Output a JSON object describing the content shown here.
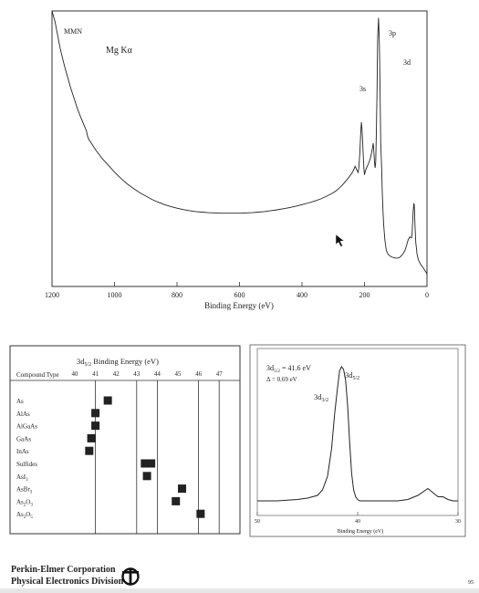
{
  "chart_data": [
    {
      "type": "line",
      "title": "Mg Kα",
      "xlabel": "Binding Energy (eV)",
      "ylabel": "",
      "xlim": [
        1200,
        0
      ],
      "x_ticks": [
        "1200",
        "1000",
        "800",
        "600",
        "400",
        "200",
        "0"
      ],
      "annotations": [
        "MMN",
        "3s",
        "3p",
        "3d"
      ],
      "series": [
        {
          "x": [
            1200,
            1195,
            1190,
            1185,
            1180,
            1175,
            1170,
            1160,
            1150,
            1140,
            1130,
            1120,
            1110,
            1100,
            1090,
            1085,
            1080,
            1060,
            1040,
            1020,
            1000,
            980,
            960,
            940,
            920,
            900,
            880,
            860,
            840,
            820,
            800,
            780,
            760,
            740,
            720,
            700,
            680,
            660,
            640,
            620,
            600,
            580,
            560,
            540,
            520,
            500,
            480,
            460,
            440,
            420,
            400,
            380,
            360,
            340,
            320,
            300,
            290,
            280,
            270,
            260,
            250,
            245,
            240,
            235,
            230,
            225,
            220,
            218,
            215,
            212,
            210,
            208,
            205,
            202,
            200,
            198,
            195,
            190,
            185,
            180,
            175,
            172,
            170,
            168,
            166,
            164,
            162,
            160,
            158,
            155,
            152,
            150,
            148,
            145,
            143,
            141,
            139,
            137,
            135,
            132,
            130,
            125,
            120,
            115,
            110,
            105,
            100,
            95,
            90,
            85,
            80,
            75,
            70,
            65,
            60,
            55,
            50,
            48,
            46,
            44,
            42,
            41,
            40,
            38,
            36,
            34,
            32,
            30,
            28,
            25,
            22,
            20,
            18,
            15,
            12,
            10,
            8,
            5,
            2,
            0
          ],
          "y": [
            1000,
            980,
            960,
            930,
            900,
            870,
            845,
            800,
            760,
            720,
            685,
            650,
            620,
            592,
            565,
            540,
            530,
            495,
            465,
            440,
            415,
            393,
            373,
            356,
            341,
            328,
            316,
            306,
            297,
            290,
            284,
            279,
            275,
            272,
            270,
            268,
            267,
            266,
            266,
            266,
            266,
            267,
            268,
            270,
            272,
            275,
            278,
            282,
            286,
            291,
            297,
            303,
            310,
            318,
            328,
            340,
            348,
            358,
            369,
            382,
            396,
            404,
            412,
            422,
            436,
            424,
            414,
            432,
            486,
            560,
            596,
            570,
            500,
            430,
            405,
            416,
            426,
            439,
            452,
            470,
            500,
            520,
            488,
            450,
            430,
            450,
            560,
            700,
            900,
            975,
            870,
            700,
            520,
            430,
            340,
            280,
            230,
            200,
            170,
            145,
            130,
            118,
            112,
            108,
            106,
            104,
            103,
            103,
            104,
            108,
            114,
            122,
            132,
            150,
            170,
            180,
            176,
            185,
            230,
            275,
            300,
            298,
            275,
            210,
            160,
            140,
            120,
            108,
            98,
            90,
            84,
            80,
            76,
            72,
            68,
            64,
            60,
            55,
            50,
            45
          ]
        }
      ]
    },
    {
      "type": "scatter",
      "title": "3d5/2 Binding Energy (eV)",
      "title_main": "3d",
      "title_sub": "5/2",
      "title_rest": " Binding Energy (eV)",
      "xlabel": "Compound Type",
      "xlim": [
        40,
        47
      ],
      "x_ticks": [
        "40",
        "41",
        "42",
        "43",
        "44",
        "45",
        "46",
        "47"
      ],
      "categories": [
        {
          "main": "As"
        },
        {
          "main": "AlAs"
        },
        {
          "main": "AlGaAs"
        },
        {
          "main": "GaAs"
        },
        {
          "main": "InAs"
        },
        {
          "main": "Sulfides"
        },
        {
          "main": "AsI",
          "sub": "3"
        },
        {
          "main": "AsBr",
          "sub": "3"
        },
        {
          "main": "As",
          "sub": "2",
          "rest": "O",
          "sub2": "3"
        },
        {
          "main": "As",
          "sub": "2",
          "rest": "O",
          "sub2": "5"
        }
      ],
      "values": [
        [
          41.6
        ],
        [
          41.0
        ],
        [
          41.0
        ],
        [
          40.8
        ],
        [
          40.7
        ],
        [
          43.4,
          43.7
        ],
        [
          43.5
        ],
        [
          45.2
        ],
        [
          44.9
        ],
        [
          46.1
        ]
      ]
    },
    {
      "type": "line",
      "xlabel": "Binding Energy (eV)",
      "xlim": [
        50,
        30
      ],
      "x_ticks": [
        "50",
        "40",
        "30"
      ],
      "annotation_line1": "3d5/2 = 41.6 eV",
      "annotation_line2": "Δ = 0.69 eV",
      "peak_labels": [
        "3d5/2",
        "3d3/2"
      ],
      "series": [
        {
          "x": [
            50,
            48,
            46,
            45,
            44,
            43.5,
            43,
            42.6,
            42.3,
            42.0,
            41.8,
            41.6,
            41.4,
            41.2,
            41.0,
            40.8,
            40.6,
            40.4,
            40.2,
            40.0,
            39.8,
            39.5,
            39.0,
            38.0,
            37.0,
            36.0,
            35.0,
            34.0,
            33.0,
            32.5,
            32.0,
            31.5,
            31.0,
            30.5,
            30
          ],
          "y": [
            2,
            2,
            3,
            4,
            6,
            10,
            20,
            40,
            65,
            85,
            97,
            100,
            98,
            90,
            72,
            45,
            22,
            10,
            5,
            3,
            2,
            2,
            2,
            2,
            2,
            2,
            3,
            6,
            11,
            8,
            5,
            5,
            3,
            2,
            2
          ]
        }
      ]
    }
  ],
  "footer": {
    "company": "Perkin-Elmer Corporation",
    "division": "Physical Electronics Division",
    "page": "95"
  }
}
